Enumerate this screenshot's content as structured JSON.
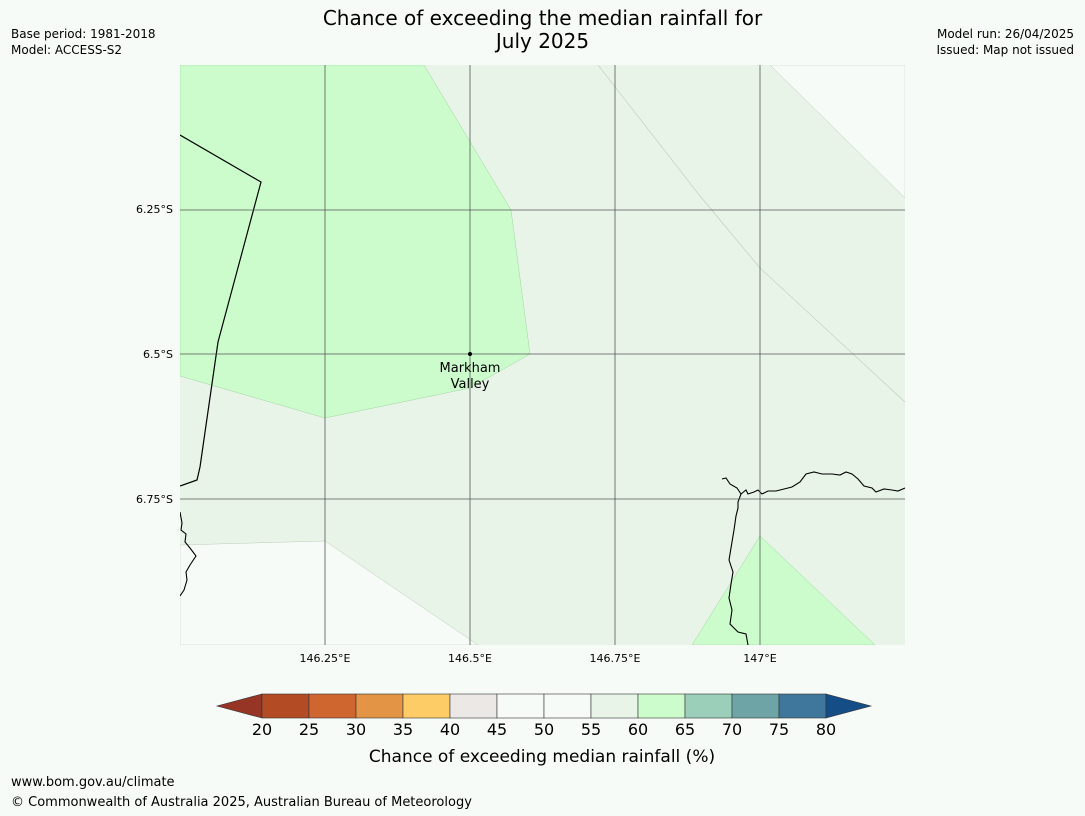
{
  "title": "Chance of exceeding the median rainfall for\nJuly 2025",
  "meta_left": {
    "base_period": "Base period: 1981-2018",
    "model": "Model: ACCESS-S2"
  },
  "meta_right": {
    "model_run": "Model run: 26/04/2025",
    "issued": "Issued: Map not issued"
  },
  "map": {
    "lat_labels": [
      "6.25°S",
      "6.5°S",
      "6.75°S"
    ],
    "lon_labels": [
      "146.25°E",
      "146.5°E",
      "146.75°E",
      "147°E"
    ],
    "place": {
      "name_line1": "Markham",
      "name_line2": "Valley",
      "lon": 146.5,
      "lat": -6.5
    },
    "colors": {
      "band_55_60": "#e9f4e9",
      "band_60_65": "#ccfccc",
      "band_50_55": "#f7fbf7",
      "coast": "#000000",
      "grid": "#555555"
    }
  },
  "legend": {
    "ticks": [
      "20",
      "25",
      "30",
      "35",
      "40",
      "45",
      "50",
      "55",
      "60",
      "65",
      "70",
      "75",
      "80"
    ],
    "colors": [
      "#963526",
      "#b34b25",
      "#cf6630",
      "#e39545",
      "#fdcc66",
      "#ebe8e5",
      "#f7fbf7",
      "#f7fbf7",
      "#e9f4e9",
      "#ccfccc",
      "#9ccfb9",
      "#6fa4a7",
      "#3e779b",
      "#154d87"
    ],
    "label": "Chance of exceeding median rainfall (%)"
  },
  "footer": {
    "url": "www.bom.gov.au/climate",
    "copyright": "© Commonwealth of Australia 2025, Australian Bureau of Meteorology"
  }
}
